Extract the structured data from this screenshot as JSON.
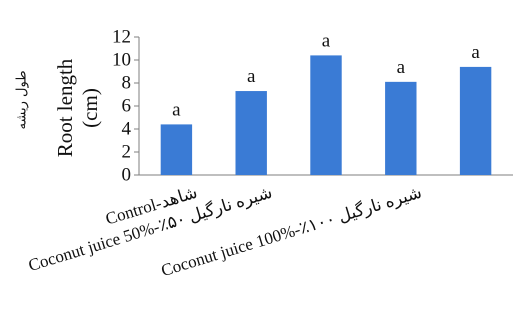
{
  "chart_data": {
    "type": "bar",
    "title": "",
    "ylabel": "Root length (cm)",
    "ylabel_lines": [
      "Root length",
      "(cm)"
    ],
    "ylabel_fa": "طول ریشه",
    "categories": [
      "Control-شاهد",
      "Coconut juice 50%-٪۵۰ شیره نارگیل",
      "",
      "Coconut juice 100%-٪۱۰۰ شیره نارگیل",
      ""
    ],
    "values": [
      4.4,
      7.3,
      10.4,
      8.1,
      9.4
    ],
    "data_labels": [
      "a",
      "a",
      "a",
      "a",
      "a"
    ],
    "ylim": [
      0,
      12
    ],
    "yticks": [
      0,
      2,
      4,
      6,
      8,
      10,
      12
    ],
    "grid": false,
    "bar_color": "#3a7bd5"
  }
}
